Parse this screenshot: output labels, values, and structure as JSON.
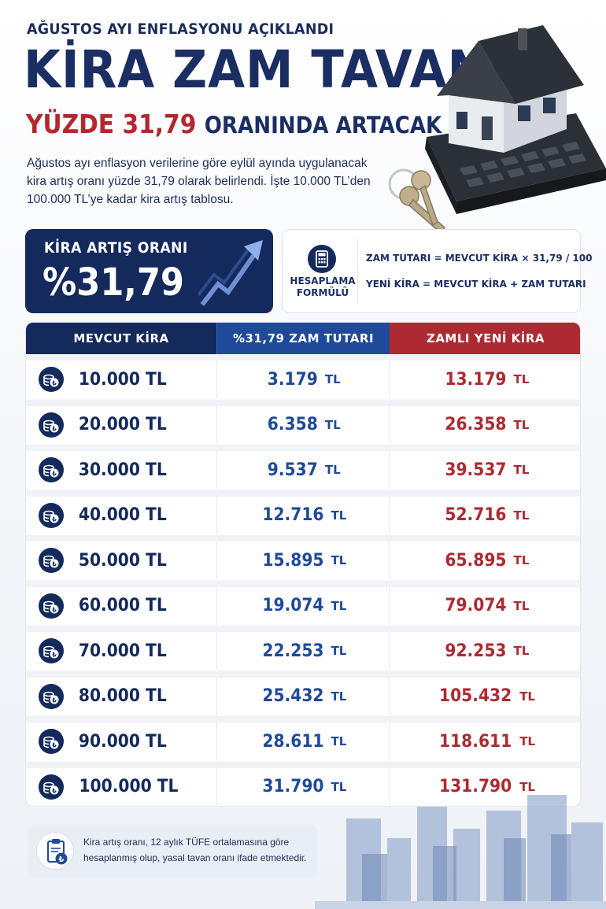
{
  "header": {
    "kicker": "AĞUSTOS AYI ENFLASYONU AÇIKLANDI",
    "title": "KİRA ZAM TAVANI",
    "subtitle_highlight": "YÜZDE 31,79",
    "subtitle_rest": "ORANINDA ARTACAK",
    "intro": "Ağustos ayı enflasyon verilerine göre eylül ayında uygulanacak kira artış oranı yüzde 31,79 olarak belirlendi. İşte 10.000 TL’den 100.000 TL’ye kadar kira artış tablosu."
  },
  "rate": {
    "label": "KİRA ARTIŞ ORANI",
    "value": "%31,79",
    "arrow_icon": "trend-up-arrow-icon"
  },
  "formula": {
    "label_line1": "HESAPLAMA",
    "label_line2": "FORMÜLÜ",
    "line1": "ZAM TUTARI  =  MEVCUT KİRA × 31,79 / 100",
    "line2": "YENİ KİRA  =  MEVCUT KİRA + ZAM TUTARI",
    "icon": "calculator-icon"
  },
  "table": {
    "headers": [
      "MEVCUT KİRA",
      "%31,79 ZAM TUTARI",
      "ZAMLI YENİ KİRA"
    ],
    "currency": "TL",
    "rows": [
      {
        "current": "10.000 TL",
        "increase": "3.179",
        "new_rent": "13.179"
      },
      {
        "current": "20.000 TL",
        "increase": "6.358",
        "new_rent": "26.358"
      },
      {
        "current": "30.000 TL",
        "increase": "9.537",
        "new_rent": "39.537"
      },
      {
        "current": "40.000 TL",
        "increase": "12.716",
        "new_rent": "52.716"
      },
      {
        "current": "50.000 TL",
        "increase": "15.895",
        "new_rent": "65.895"
      },
      {
        "current": "60.000 TL",
        "increase": "19.074",
        "new_rent": "79.074"
      },
      {
        "current": "70.000 TL",
        "increase": "22.253",
        "new_rent": "92.253"
      },
      {
        "current": "80.000 TL",
        "increase": "25.432",
        "new_rent": "105.432"
      },
      {
        "current": "90.000 TL",
        "increase": "28.611",
        "new_rent": "118.611"
      },
      {
        "current": "100.000 TL",
        "increase": "31.790",
        "new_rent": "131.790"
      }
    ]
  },
  "note": {
    "text": "Kira artış oranı, 12 aylık TÜFE ortalamasına göre hesaplanmış olup, yasal tavan oranı ifade etmektedir.",
    "icon": "clipboard-lira-icon"
  },
  "colors": {
    "navy": "#142a5c",
    "blue": "#1f4a99",
    "red": "#ad2a32"
  }
}
